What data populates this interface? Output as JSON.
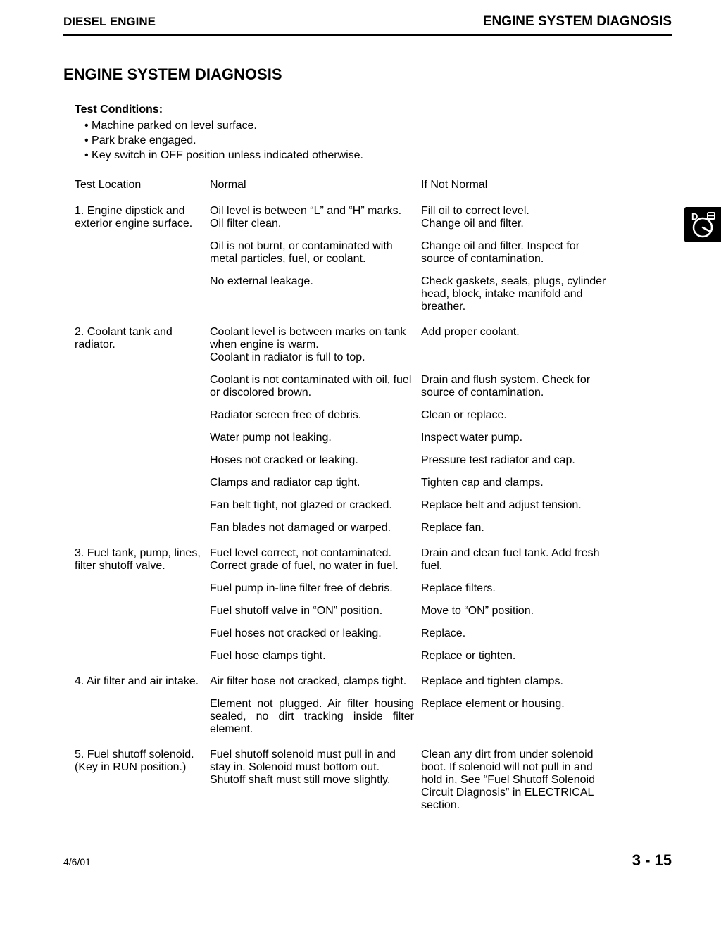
{
  "header": {
    "left": "DIESEL ENGINE",
    "right": "ENGINE SYSTEM DIAGNOSIS"
  },
  "section_title": "ENGINE SYSTEM DIAGNOSIS",
  "test_conditions": {
    "heading": "Test Conditions:",
    "items": [
      "Machine parked on level surface.",
      "Park brake engaged.",
      "Key switch in OFF position unless indicated otherwise."
    ]
  },
  "columns": {
    "location": "Test Location",
    "normal": "Normal",
    "if_not": "If Not Normal"
  },
  "rows": [
    {
      "location": "1. Engine dipstick and exterior engine surface.",
      "pairs": [
        {
          "normal": "Oil level is between “L” and “H” marks. Oil filter clean.",
          "if_not": "Fill oil to correct level.\nChange oil and filter."
        },
        {
          "normal": "Oil is not burnt, or contaminated with metal particles, fuel, or coolant.",
          "if_not": "Change oil and filter. Inspect for source of contamination."
        },
        {
          "normal": "No external leakage.",
          "if_not": "Check gaskets, seals, plugs, cylinder head, block, intake manifold and breather."
        }
      ]
    },
    {
      "location": "2. Coolant tank and radiator.",
      "pairs": [
        {
          "normal": "Coolant level is between marks on tank when engine is warm.\nCoolant in radiator is full to top.",
          "if_not": "Add proper coolant."
        },
        {
          "normal": "Coolant is not contaminated with oil, fuel or discolored brown.",
          "if_not": "Drain and flush system. Check for source of contamination."
        },
        {
          "normal": "Radiator screen free of debris.",
          "if_not": "Clean or replace."
        },
        {
          "normal": "Water pump not leaking.",
          "if_not": "Inspect water pump."
        },
        {
          "normal": "Hoses not cracked or leaking.",
          "if_not": "Pressure test radiator and cap."
        },
        {
          "normal": "Clamps and radiator cap tight.",
          "if_not": "Tighten cap and clamps."
        },
        {
          "normal": "Fan belt tight, not glazed or cracked.",
          "if_not": "Replace belt and adjust tension."
        },
        {
          "normal": "Fan blades not damaged or warped.",
          "if_not": "Replace fan."
        }
      ]
    },
    {
      "location": "3. Fuel tank, pump, lines, filter shutoff valve.",
      "pairs": [
        {
          "normal": "Fuel level correct, not contaminated. Correct grade of fuel, no water in fuel.",
          "if_not": "Drain and clean fuel tank. Add fresh fuel."
        },
        {
          "normal": "Fuel pump in-line filter free of debris.",
          "if_not": "Replace filters."
        },
        {
          "normal": "Fuel shutoff valve in “ON” position.",
          "if_not": "Move to “ON” position."
        },
        {
          "normal": "Fuel hoses not cracked or leaking.",
          "if_not": "Replace."
        },
        {
          "normal": "Fuel hose clamps tight.",
          "if_not": "Replace or tighten."
        }
      ]
    },
    {
      "location": "4. Air filter and air intake.",
      "pairs": [
        {
          "normal": "Air filter hose not cracked, clamps tight.",
          "if_not": "Replace and tighten clamps."
        },
        {
          "normal": "Element not plugged. Air filter housing sealed, no dirt tracking inside filter element.",
          "if_not": "Replace element or housing.",
          "justify": true
        }
      ]
    },
    {
      "location": "5. Fuel shutoff solenoid. (Key in RUN position.)",
      "pairs": [
        {
          "normal": "Fuel shutoff solenoid must pull in and stay in. Solenoid must bottom out. Shutoff shaft must still move slightly.",
          "if_not": "Clean any dirt from under solenoid boot. If solenoid will not pull in and hold in, See “Fuel Shutoff Solenoid Circuit Diagnosis” in ELECTRICAL section."
        }
      ]
    }
  ],
  "footer": {
    "date": "4/6/01",
    "page": "3 - 15"
  },
  "side_tab": {
    "letter": "D"
  }
}
